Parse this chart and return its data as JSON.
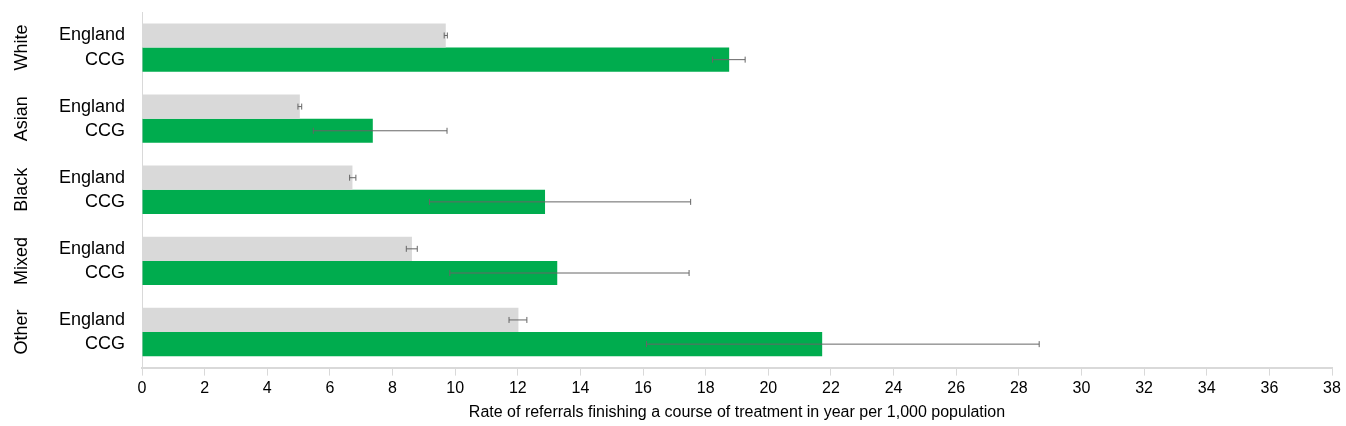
{
  "chart_data": {
    "type": "bar",
    "orientation": "horizontal",
    "xlabel": "Rate of referrals finishing a course of treatment in year per 1,000 population",
    "categories": [
      "White",
      "Asian",
      "Black",
      "Mixed",
      "Other"
    ],
    "series": [
      {
        "name": "England",
        "color": "#d9d9d9",
        "values": [
          9.7,
          5.04,
          6.72,
          8.62,
          12.02
        ],
        "errors": [
          [
            9.65,
            9.75
          ],
          [
            4.98,
            5.1
          ],
          [
            6.63,
            6.83
          ],
          [
            8.44,
            8.79
          ],
          [
            11.72,
            12.29
          ]
        ]
      },
      {
        "name": "CCG",
        "color": "#00ac4e",
        "values": [
          18.75,
          7.37,
          12.87,
          13.26,
          21.72
        ],
        "errors": [
          [
            18.22,
            19.26
          ],
          [
            5.47,
            9.74
          ],
          [
            9.18,
            17.52
          ],
          [
            9.83,
            17.47
          ],
          [
            16.11,
            28.65
          ]
        ]
      }
    ],
    "xlim": [
      0,
      38
    ],
    "xticks": [
      0,
      2,
      4,
      6,
      8,
      10,
      12,
      14,
      16,
      18,
      20,
      22,
      24,
      26,
      28,
      30,
      32,
      34,
      36,
      38
    ],
    "grid": false,
    "legend": false
  }
}
